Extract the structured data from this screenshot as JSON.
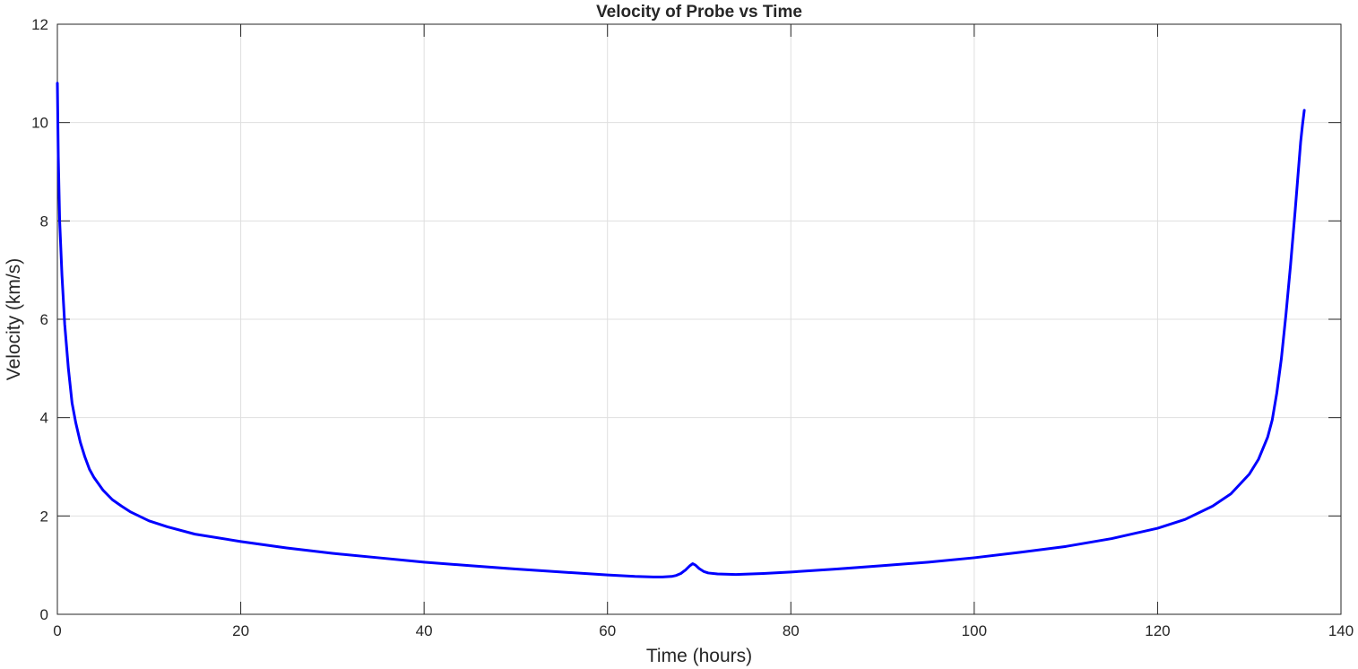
{
  "chart_data": {
    "type": "line",
    "title": "Velocity of Probe vs Time",
    "xlabel": "Time (hours)",
    "ylabel": "Velocity (km/s)",
    "xlim": [
      0,
      140
    ],
    "ylim": [
      0,
      12
    ],
    "xticks": [
      0,
      20,
      40,
      60,
      80,
      100,
      120,
      140
    ],
    "yticks": [
      0,
      2,
      4,
      6,
      8,
      10,
      12
    ],
    "grid": true,
    "line_color": "#0000ff",
    "series": [
      {
        "x": [
          0,
          0.1,
          0.25,
          0.5,
          0.8,
          1.2,
          1.6,
          2,
          2.5,
          3,
          3.5,
          4,
          5,
          6,
          7,
          8,
          10,
          12,
          15,
          20,
          25,
          30,
          35,
          40,
          45,
          50,
          55,
          60,
          63,
          65,
          66,
          67,
          67.5,
          68,
          68.5,
          69,
          69.3,
          69.6,
          70,
          70.5,
          71,
          72,
          74,
          77,
          80,
          85,
          90,
          95,
          100,
          105,
          110,
          115,
          120,
          123,
          126,
          128,
          130,
          131,
          132,
          132.5,
          133,
          133.5,
          134,
          134.5,
          135,
          135.3,
          135.6,
          135.8,
          136
        ],
        "y": [
          10.8,
          9.3,
          8.0,
          6.9,
          5.9,
          5.0,
          4.3,
          3.9,
          3.5,
          3.2,
          2.95,
          2.78,
          2.52,
          2.33,
          2.2,
          2.08,
          1.9,
          1.78,
          1.63,
          1.48,
          1.35,
          1.24,
          1.15,
          1.06,
          0.99,
          0.92,
          0.86,
          0.8,
          0.77,
          0.76,
          0.76,
          0.77,
          0.79,
          0.83,
          0.9,
          0.99,
          1.03,
          1.0,
          0.93,
          0.87,
          0.84,
          0.82,
          0.81,
          0.83,
          0.86,
          0.92,
          0.99,
          1.06,
          1.15,
          1.26,
          1.38,
          1.54,
          1.75,
          1.93,
          2.2,
          2.45,
          2.85,
          3.15,
          3.6,
          3.95,
          4.5,
          5.2,
          6.1,
          7.1,
          8.2,
          8.9,
          9.6,
          9.95,
          10.25
        ]
      }
    ]
  }
}
